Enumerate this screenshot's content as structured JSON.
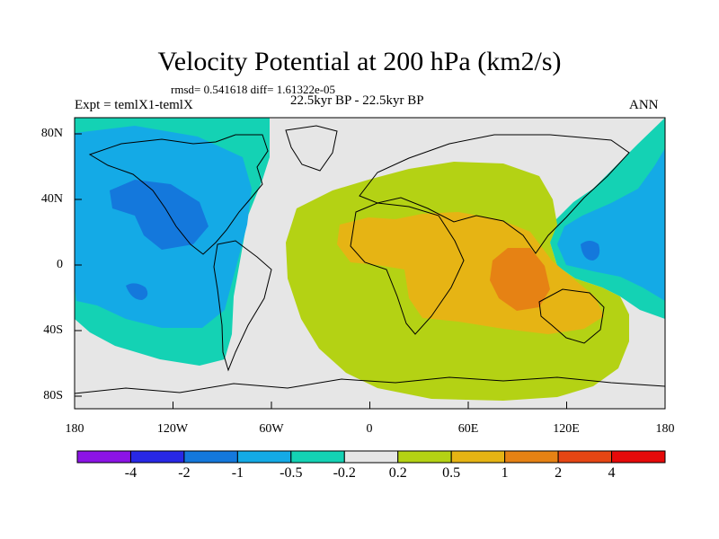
{
  "title": "Velocity Potential at 200 hPa (km2/s)",
  "stats": "rmsd= 0.541618 diff= 1.61322e-05",
  "experiment": "Expt = temlX1-temlX",
  "period": "22.5kyr BP - 22.5kyr BP",
  "season": "ANN",
  "axes": {
    "lon_ticks": [
      "180",
      "120W",
      "60W",
      "0",
      "60E",
      "120E",
      "180"
    ],
    "lat_ticks": [
      "80N",
      "40N",
      "0",
      "40S",
      "80S"
    ]
  },
  "colorbar": {
    "colors": [
      "#8c14e6",
      "#2828e6",
      "#1478dc",
      "#14aae6",
      "#14d2b4",
      "#e6e6e6",
      "#b4d214",
      "#e6b414",
      "#e68214",
      "#e64614",
      "#e60a0a"
    ],
    "labels": [
      "-4",
      "-2",
      "-1",
      "-0.5",
      "-0.2",
      "0.2",
      "0.5",
      "1",
      "2",
      "4"
    ]
  }
}
